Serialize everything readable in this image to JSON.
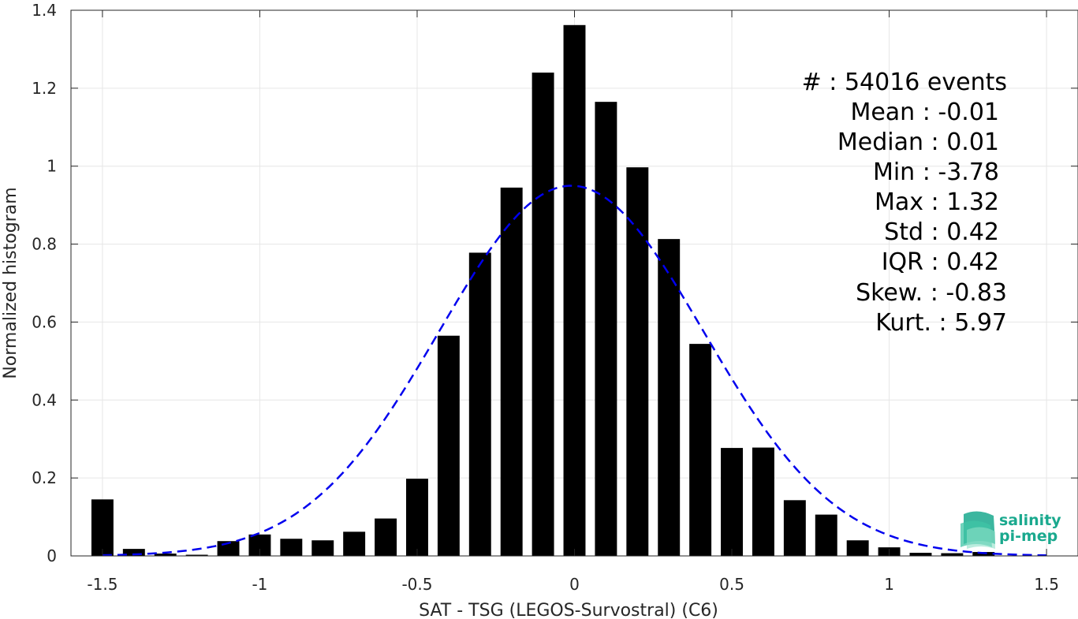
{
  "chart_data": {
    "type": "bar",
    "xlabel": "SAT - TSG (LEGOS-Survostral) (C6)",
    "ylabel": "Normalized histogram",
    "xlim": [
      -1.6,
      1.6
    ],
    "ylim": [
      0,
      1.4
    ],
    "xticks": [
      "-1.5",
      "-1",
      "-0.5",
      "0",
      "0.5",
      "1",
      "1.5"
    ],
    "xtick_values": [
      -1.5,
      -1,
      -0.5,
      0,
      0.5,
      1,
      1.5
    ],
    "yticks": [
      "0",
      "0.2",
      "0.4",
      "0.6",
      "0.8",
      "1",
      "1.2",
      "1.4"
    ],
    "ytick_values": [
      0,
      0.2,
      0.4,
      0.6,
      0.8,
      1,
      1.2,
      1.4
    ],
    "grid": true,
    "bar_color": "#000000",
    "bins": {
      "centers": [
        -1.5,
        -1.4,
        -1.3,
        -1.2,
        -1.1,
        -1.0,
        -0.9,
        -0.8,
        -0.7,
        -0.6,
        -0.5,
        -0.4,
        -0.3,
        -0.2,
        -0.1,
        0.0,
        0.1,
        0.2,
        0.3,
        0.4,
        0.5,
        0.6,
        0.7,
        0.8,
        0.9,
        1.0,
        1.1,
        1.2,
        1.3
      ],
      "values": [
        0.145,
        0.018,
        0.006,
        0.003,
        0.038,
        0.055,
        0.044,
        0.04,
        0.062,
        0.096,
        0.198,
        0.565,
        0.778,
        0.945,
        1.24,
        1.362,
        1.165,
        0.997,
        0.813,
        0.544,
        0.277,
        0.278,
        0.143,
        0.106,
        0.04,
        0.022,
        0.008,
        0.007,
        0.01
      ]
    },
    "fit_curve": {
      "style": "dashed",
      "color": "#0000ee",
      "mean": -0.01,
      "std": 0.42,
      "x_range": [
        -1.5,
        1.5
      ]
    },
    "annotations": [
      "#  : 54016 events",
      "Mean : -0.01",
      "Median : 0.01",
      "Min : -3.78",
      "Max : 1.32",
      "Std : 0.42",
      "IQR : 0.42",
      "Skew. : -0.83",
      "Kurt. : 5.97"
    ]
  },
  "logo": {
    "line1": "salinity",
    "line2": "pi-mep",
    "color": "#1aa98e"
  }
}
